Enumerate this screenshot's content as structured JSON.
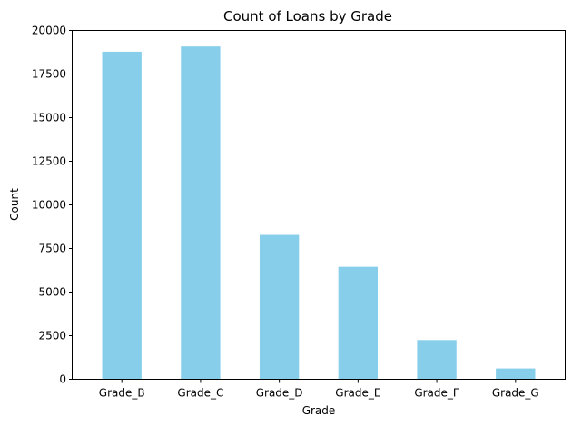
{
  "chart_data": {
    "type": "bar",
    "title": "Count of Loans by Grade",
    "xlabel": "Grade",
    "ylabel": "Count",
    "categories": [
      "Grade_B",
      "Grade_C",
      "Grade_D",
      "Grade_E",
      "Grade_F",
      "Grade_G"
    ],
    "values": [
      18780,
      19080,
      8280,
      6450,
      2250,
      620
    ],
    "ylim": [
      0,
      20000
    ],
    "yticks": [
      0,
      2500,
      5000,
      7500,
      10000,
      12500,
      15000,
      17500,
      20000
    ],
    "grid": false,
    "bar_color": "#87CEEB"
  }
}
